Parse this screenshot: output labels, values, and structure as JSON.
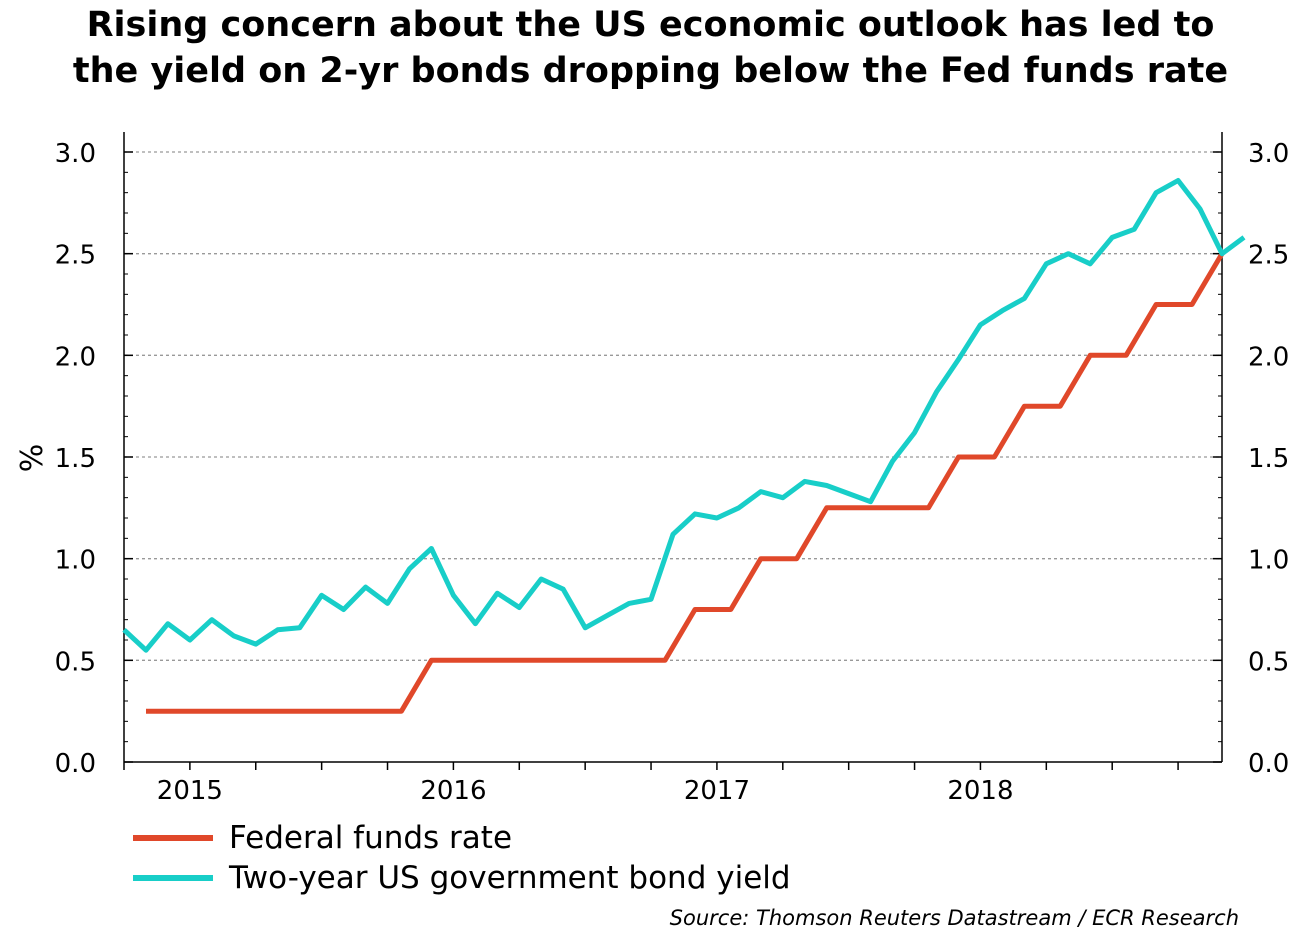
{
  "title_lines": [
    "Rising concern about the US economic outlook has led to",
    "the yield on 2-yr bonds dropping below the Fed funds rate"
  ],
  "source": "Source: Thomson Reuters Datastream / ECR Research",
  "colors": {
    "fed": "#e0482a",
    "yield": "#18cec8",
    "grid": "#999999"
  },
  "chart_data": {
    "type": "line",
    "ylabel": "%",
    "ylim": [
      0.0,
      3.0
    ],
    "yticks": [
      "0.0",
      "0.5",
      "1.0",
      "1.5",
      "2.0",
      "2.5",
      "3.0"
    ],
    "xlim": [
      "2014-10",
      "2018-12"
    ],
    "xticks": [
      {
        "label": "2015",
        "date": "2015-01"
      },
      {
        "label": "2016",
        "date": "2016-01"
      },
      {
        "label": "2017",
        "date": "2017-01"
      },
      {
        "label": "2018",
        "date": "2018-01"
      }
    ],
    "grid": true,
    "legend_position": "bottom-left",
    "series": [
      {
        "name": "Federal funds rate",
        "step": true,
        "x": [
          "2014-11",
          "2015-12",
          "2016-12",
          "2017-03",
          "2017-06",
          "2017-12",
          "2018-03",
          "2018-06",
          "2018-09",
          "2018-12"
        ],
        "values": [
          0.25,
          0.5,
          0.75,
          1.0,
          1.25,
          1.5,
          1.75,
          2.0,
          2.25,
          2.5
        ]
      },
      {
        "name": "Two-year US government bond yield",
        "step": false,
        "x": [
          "2014-10",
          "2014-11",
          "2014-12",
          "2015-01",
          "2015-02",
          "2015-03",
          "2015-04",
          "2015-05",
          "2015-06",
          "2015-07",
          "2015-08",
          "2015-09",
          "2015-10",
          "2015-11",
          "2015-12",
          "2016-01",
          "2016-02",
          "2016-03",
          "2016-04",
          "2016-05",
          "2016-06",
          "2016-07",
          "2016-08",
          "2016-09",
          "2016-10",
          "2016-11",
          "2016-12",
          "2017-01",
          "2017-02",
          "2017-03",
          "2017-04",
          "2017-05",
          "2017-06",
          "2017-07",
          "2017-08",
          "2017-09",
          "2017-10",
          "2017-11",
          "2017-12",
          "2018-01",
          "2018-02",
          "2018-03",
          "2018-04",
          "2018-05",
          "2018-06",
          "2018-07",
          "2018-08",
          "2018-09",
          "2018-10",
          "2018-11",
          "2018-12",
          "2019-01"
        ],
        "values": [
          0.65,
          0.55,
          0.68,
          0.6,
          0.7,
          0.62,
          0.58,
          0.65,
          0.66,
          0.82,
          0.75,
          0.86,
          0.78,
          0.95,
          1.05,
          0.82,
          0.68,
          0.83,
          0.76,
          0.9,
          0.85,
          0.66,
          0.72,
          0.78,
          0.8,
          1.12,
          1.22,
          1.2,
          1.25,
          1.33,
          1.3,
          1.38,
          1.36,
          1.32,
          1.28,
          1.48,
          1.62,
          1.82,
          1.98,
          2.15,
          2.22,
          2.28,
          2.45,
          2.5,
          2.45,
          2.58,
          2.62,
          2.8,
          2.86,
          2.72,
          2.5,
          2.58
        ]
      }
    ]
  }
}
